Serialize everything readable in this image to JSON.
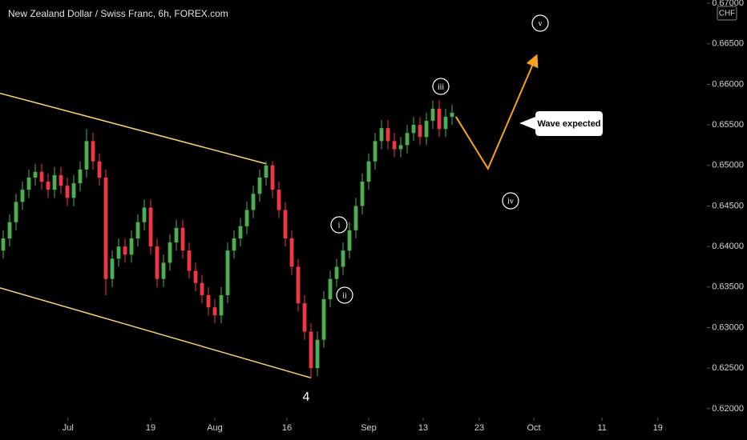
{
  "chart_data": {
    "type": "candlestick",
    "title": "New Zealand Dollar / Swiss Franc, 6h, FOREX.com",
    "currency": "CHF",
    "up_color": "#4caf50",
    "down_color": "#f23645",
    "open": [
      0.6395,
      0.641,
      0.643,
      0.6455,
      0.647,
      0.6485,
      0.6492,
      0.648,
      0.647,
      0.6488,
      0.6475,
      0.646,
      0.6478,
      0.6495,
      0.653,
      0.6505,
      0.6485,
      0.636,
      0.6385,
      0.64,
      0.639,
      0.641,
      0.643,
      0.6448,
      0.64,
      0.636,
      0.638,
      0.6405,
      0.6423,
      0.6395,
      0.637,
      0.6355,
      0.634,
      0.6325,
      0.6315,
      0.634,
      0.6395,
      0.641,
      0.6425,
      0.6445,
      0.6465,
      0.6485,
      0.65,
      0.647,
      0.6445,
      0.641,
      0.6375,
      0.633,
      0.6295,
      0.625,
      0.6285,
      0.6335,
      0.636,
      0.6375,
      0.6395,
      0.642,
      0.645,
      0.648,
      0.6505,
      0.653,
      0.6546,
      0.653,
      0.652,
      0.6525,
      0.654,
      0.655,
      0.6535,
      0.6555,
      0.657,
      0.6545,
      0.656
    ],
    "high": [
      0.642,
      0.644,
      0.6465,
      0.648,
      0.6495,
      0.6502,
      0.6502,
      0.649,
      0.6498,
      0.6498,
      0.6485,
      0.6488,
      0.6505,
      0.6545,
      0.654,
      0.6515,
      0.6495,
      0.6395,
      0.641,
      0.641,
      0.642,
      0.644,
      0.6458,
      0.6458,
      0.641,
      0.639,
      0.6415,
      0.6433,
      0.6433,
      0.6405,
      0.638,
      0.6365,
      0.635,
      0.6335,
      0.635,
      0.6405,
      0.642,
      0.6435,
      0.6455,
      0.6475,
      0.6495,
      0.6505,
      0.6505,
      0.648,
      0.6455,
      0.642,
      0.6385,
      0.634,
      0.6305,
      0.6295,
      0.6345,
      0.637,
      0.6385,
      0.6405,
      0.643,
      0.646,
      0.649,
      0.6515,
      0.654,
      0.6556,
      0.6556,
      0.654,
      0.6535,
      0.655,
      0.656,
      0.656,
      0.6565,
      0.658,
      0.658,
      0.657,
      0.6575
    ],
    "low": [
      0.6385,
      0.64,
      0.642,
      0.6445,
      0.646,
      0.6475,
      0.647,
      0.646,
      0.646,
      0.6465,
      0.645,
      0.645,
      0.6468,
      0.6485,
      0.6495,
      0.6475,
      0.634,
      0.635,
      0.6375,
      0.638,
      0.638,
      0.64,
      0.642,
      0.639,
      0.635,
      0.635,
      0.637,
      0.6395,
      0.6385,
      0.636,
      0.6345,
      0.633,
      0.6315,
      0.6305,
      0.6305,
      0.633,
      0.6385,
      0.64,
      0.6415,
      0.6435,
      0.6455,
      0.6475,
      0.646,
      0.6435,
      0.64,
      0.6365,
      0.632,
      0.6285,
      0.6238,
      0.624,
      0.6275,
      0.6325,
      0.635,
      0.6365,
      0.6385,
      0.641,
      0.644,
      0.647,
      0.6495,
      0.652,
      0.652,
      0.651,
      0.651,
      0.6515,
      0.653,
      0.6525,
      0.6525,
      0.6545,
      0.6535,
      0.6535,
      0.655
    ],
    "close": [
      0.641,
      0.643,
      0.6455,
      0.647,
      0.6485,
      0.6492,
      0.648,
      0.647,
      0.6488,
      0.6475,
      0.646,
      0.6478,
      0.6495,
      0.653,
      0.6505,
      0.6485,
      0.636,
      0.6385,
      0.64,
      0.639,
      0.641,
      0.643,
      0.6448,
      0.64,
      0.636,
      0.638,
      0.6405,
      0.6423,
      0.6395,
      0.637,
      0.6355,
      0.634,
      0.6325,
      0.6315,
      0.634,
      0.6395,
      0.641,
      0.6425,
      0.6445,
      0.6465,
      0.6485,
      0.65,
      0.647,
      0.6445,
      0.641,
      0.6375,
      0.633,
      0.6295,
      0.625,
      0.6285,
      0.6335,
      0.636,
      0.6375,
      0.6395,
      0.642,
      0.645,
      0.648,
      0.6505,
      0.653,
      0.6546,
      0.653,
      0.652,
      0.6525,
      0.654,
      0.655,
      0.6535,
      0.6555,
      0.657,
      0.6545,
      0.656,
      0.6565
    ],
    "xlim": [
      -0.5,
      109.75
    ],
    "xticks": [
      {
        "value": 10.1,
        "label": "Jul"
      },
      {
        "value": 23,
        "label": "19"
      },
      {
        "value": 33,
        "label": "Aug"
      },
      {
        "value": 44.25,
        "label": "16"
      },
      {
        "value": 57,
        "label": "Sep"
      },
      {
        "value": 65.5,
        "label": "13"
      },
      {
        "value": 74.25,
        "label": "23"
      },
      {
        "value": 82.75,
        "label": "Oct"
      },
      {
        "value": 93.4,
        "label": "11"
      },
      {
        "value": 102.1,
        "label": "19"
      }
    ],
    "ylim": [
      0.6189,
      0.6704
    ],
    "yticks": [
      {
        "value": 0.62,
        "label": "0.62000"
      },
      {
        "value": 0.625,
        "label": "0.62500"
      },
      {
        "value": 0.63,
        "label": "0.63000"
      },
      {
        "value": 0.635,
        "label": "0.63500"
      },
      {
        "value": 0.64,
        "label": "0.64000"
      },
      {
        "value": 0.645,
        "label": "0.64500"
      },
      {
        "value": 0.65,
        "label": "0.65000"
      },
      {
        "value": 0.655,
        "label": "0.65500"
      },
      {
        "value": 0.66,
        "label": "0.66000"
      },
      {
        "value": 0.665,
        "label": "0.66500"
      },
      {
        "value": 0.67,
        "label": "0.67000"
      }
    ],
    "grid": false,
    "trendlines": [
      {
        "color": "#f5d76e",
        "x": [
          -0.5,
          41
        ],
        "y": [
          0.6589,
          0.6502
        ]
      },
      {
        "color": "#f5d76e",
        "x": [
          -0.5,
          48
        ],
        "y": [
          0.6349,
          0.6238
        ]
      }
    ],
    "projection": {
      "color": "#f7a21b",
      "x": [
        70.6,
        75.6,
        83
      ],
      "y": [
        0.656,
        0.6496,
        0.6632
      ]
    },
    "wave_labels": [
      "4",
      "i",
      "ii",
      "iii",
      "iv",
      "v"
    ],
    "callout": "Wave expected"
  }
}
